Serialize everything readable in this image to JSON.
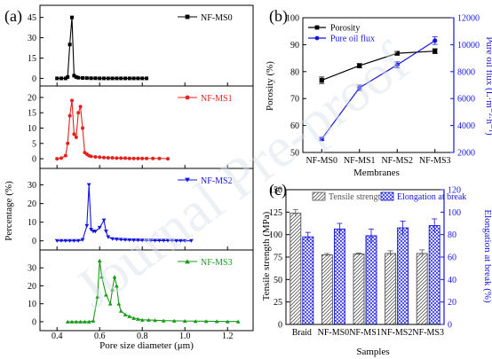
{
  "watermark": "Journal Pre-proof",
  "chart_data": [
    {
      "id": "a",
      "panel_label": "(a)",
      "type": "line",
      "xlabel": "Pore size diameter (μm)",
      "ylabel": "Percentage (%)",
      "x_ticks": [
        "0.4",
        "0.6",
        "0.8",
        "1.0",
        "1.2"
      ],
      "xlim": [
        0.32,
        1.32
      ],
      "subplots": [
        {
          "name": "NF-MS0",
          "color": "#000000",
          "marker": "square",
          "ylim": [
            -3,
            50
          ],
          "y_ticks": [
            0,
            15,
            30,
            45
          ],
          "x": [
            0.4,
            0.42,
            0.44,
            0.45,
            0.46,
            0.47,
            0.48,
            0.49,
            0.5,
            0.52,
            0.54,
            0.56,
            0.58,
            0.6,
            0.62,
            0.64,
            0.66,
            0.68,
            0.7,
            0.72,
            0.74,
            0.76,
            0.78,
            0.8,
            0.82
          ],
          "y": [
            0,
            0,
            0,
            1,
            25,
            45,
            2,
            1,
            0.5,
            0.3,
            0.2,
            0.1,
            0.1,
            0,
            0,
            0,
            0,
            0,
            0,
            0,
            0,
            0,
            0,
            0,
            0
          ]
        },
        {
          "name": "NF-MS1",
          "color": "#e8201c",
          "marker": "circle",
          "ylim": [
            -2,
            22
          ],
          "y_ticks": [
            0,
            5,
            10,
            15,
            20
          ],
          "x": [
            0.4,
            0.42,
            0.44,
            0.45,
            0.46,
            0.47,
            0.48,
            0.49,
            0.5,
            0.51,
            0.52,
            0.53,
            0.54,
            0.55,
            0.56,
            0.58,
            0.6,
            0.62,
            0.64,
            0.66,
            0.68,
            0.7,
            0.72,
            0.74,
            0.76,
            0.78,
            0.8,
            0.82,
            0.85,
            0.88,
            0.92
          ],
          "y": [
            0,
            0.2,
            1,
            5,
            14,
            19,
            8,
            7,
            15,
            17,
            10,
            2,
            1.5,
            1,
            0.8,
            0.6,
            0.5,
            0.4,
            0.3,
            0.3,
            0.2,
            0.2,
            0.2,
            0.1,
            0.1,
            0.1,
            0.1,
            0.1,
            0.1,
            0.1,
            0
          ]
        },
        {
          "name": "NF-MS2",
          "color": "#1515e0",
          "marker": "triangle-down",
          "ylim": [
            -3,
            36
          ],
          "y_ticks": [
            0,
            10,
            20,
            30
          ],
          "x": [
            0.4,
            0.42,
            0.44,
            0.46,
            0.48,
            0.5,
            0.52,
            0.54,
            0.55,
            0.56,
            0.57,
            0.58,
            0.6,
            0.62,
            0.63,
            0.64,
            0.66,
            0.68,
            0.7,
            0.72,
            0.74,
            0.76,
            0.78,
            0.8,
            0.82,
            0.84,
            0.86,
            0.88,
            0.9,
            0.92,
            0.94,
            0.96,
            0.98,
            1.0,
            1.03
          ],
          "y": [
            0,
            0,
            0,
            0,
            0,
            0,
            0.5,
            8,
            30,
            6,
            5,
            5,
            7,
            11,
            5,
            2,
            1,
            0.8,
            0.6,
            0.5,
            0.4,
            0.3,
            0.3,
            0.2,
            0.2,
            0.2,
            0.1,
            0.1,
            0.1,
            0.1,
            0.1,
            0,
            0,
            0,
            0
          ]
        },
        {
          "name": "NF-MS3",
          "color": "#1a9a1a",
          "marker": "triangle-up",
          "ylim": [
            -3,
            37
          ],
          "y_ticks": [
            0,
            10,
            20,
            30
          ],
          "x": [
            0.45,
            0.47,
            0.49,
            0.51,
            0.53,
            0.55,
            0.57,
            0.59,
            0.6,
            0.61,
            0.63,
            0.65,
            0.66,
            0.67,
            0.68,
            0.69,
            0.7,
            0.72,
            0.74,
            0.76,
            0.78,
            0.8,
            0.83,
            0.86,
            0.9,
            0.95,
            1.0,
            1.05,
            1.1,
            1.15,
            1.2,
            1.25
          ],
          "y": [
            0,
            0,
            0,
            0,
            0,
            0,
            0.5,
            14,
            34,
            25,
            15,
            10,
            18,
            25,
            20,
            10,
            6,
            4,
            3,
            2,
            1.5,
            1,
            1,
            0.8,
            0.6,
            0.5,
            0.4,
            0.3,
            0.3,
            0.2,
            0.1,
            0.1
          ]
        }
      ]
    },
    {
      "id": "b",
      "panel_label": "(b)",
      "type": "line",
      "xlabel": "Membranes",
      "ylabel": "Porosity (%)",
      "ylabel_right": "Pure oil flux (L·m⁻²·h⁻¹)",
      "categories": [
        "NF-MS0",
        "NF-MS1",
        "NF-MS2",
        "NF-MS3"
      ],
      "ylim": [
        50,
        100
      ],
      "y_ticks": [
        50,
        60,
        70,
        80,
        90,
        100
      ],
      "ylim_right": [
        2000,
        12000
      ],
      "y_ticks_right": [
        2000,
        4000,
        6000,
        8000,
        10000,
        12000
      ],
      "legend_position": "top-left",
      "series": [
        {
          "name": "Porosity",
          "color": "#000000",
          "marker": "square",
          "axis": "left",
          "values": [
            76.8,
            82.2,
            86.8,
            87.6
          ],
          "errors": [
            1.2,
            0.8,
            0.7,
            0.9
          ]
        },
        {
          "name": "Pure oil flux",
          "color": "#1515e0",
          "marker": "circle",
          "axis": "right",
          "values": [
            3000,
            6800,
            8500,
            10300
          ],
          "errors": [
            120,
            200,
            220,
            280
          ]
        }
      ]
    },
    {
      "id": "c",
      "panel_label": "(c)",
      "type": "bar",
      "xlabel": "Samples",
      "ylabel": "Tensile strength (MPa)",
      "ylabel_right": "Elongation at break (%)",
      "categories": [
        "Braid",
        "NF-MS0",
        "NF-MS1",
        "NF-MS2",
        "NF-MS3"
      ],
      "ylim": [
        0,
        150
      ],
      "y_ticks": [
        0,
        25,
        50,
        75,
        100,
        125,
        150
      ],
      "ylim_right": [
        0,
        120
      ],
      "y_ticks_right": [
        0,
        20,
        40,
        60,
        80,
        100,
        120
      ],
      "legend_position": "top",
      "series": [
        {
          "name": "Tensile strength",
          "color": "#555555",
          "pattern": "hatch",
          "axis": "left",
          "values": [
            124,
            77.5,
            78.5,
            79,
            79
          ],
          "errors": [
            4,
            1.5,
            1,
            3,
            4
          ]
        },
        {
          "name": "Elongation at break",
          "color": "#1515e0",
          "pattern": "crosshatch",
          "axis": "right",
          "values": [
            78,
            85,
            79,
            86,
            88
          ],
          "errors": [
            4,
            5,
            6,
            6,
            6
          ]
        }
      ]
    }
  ]
}
